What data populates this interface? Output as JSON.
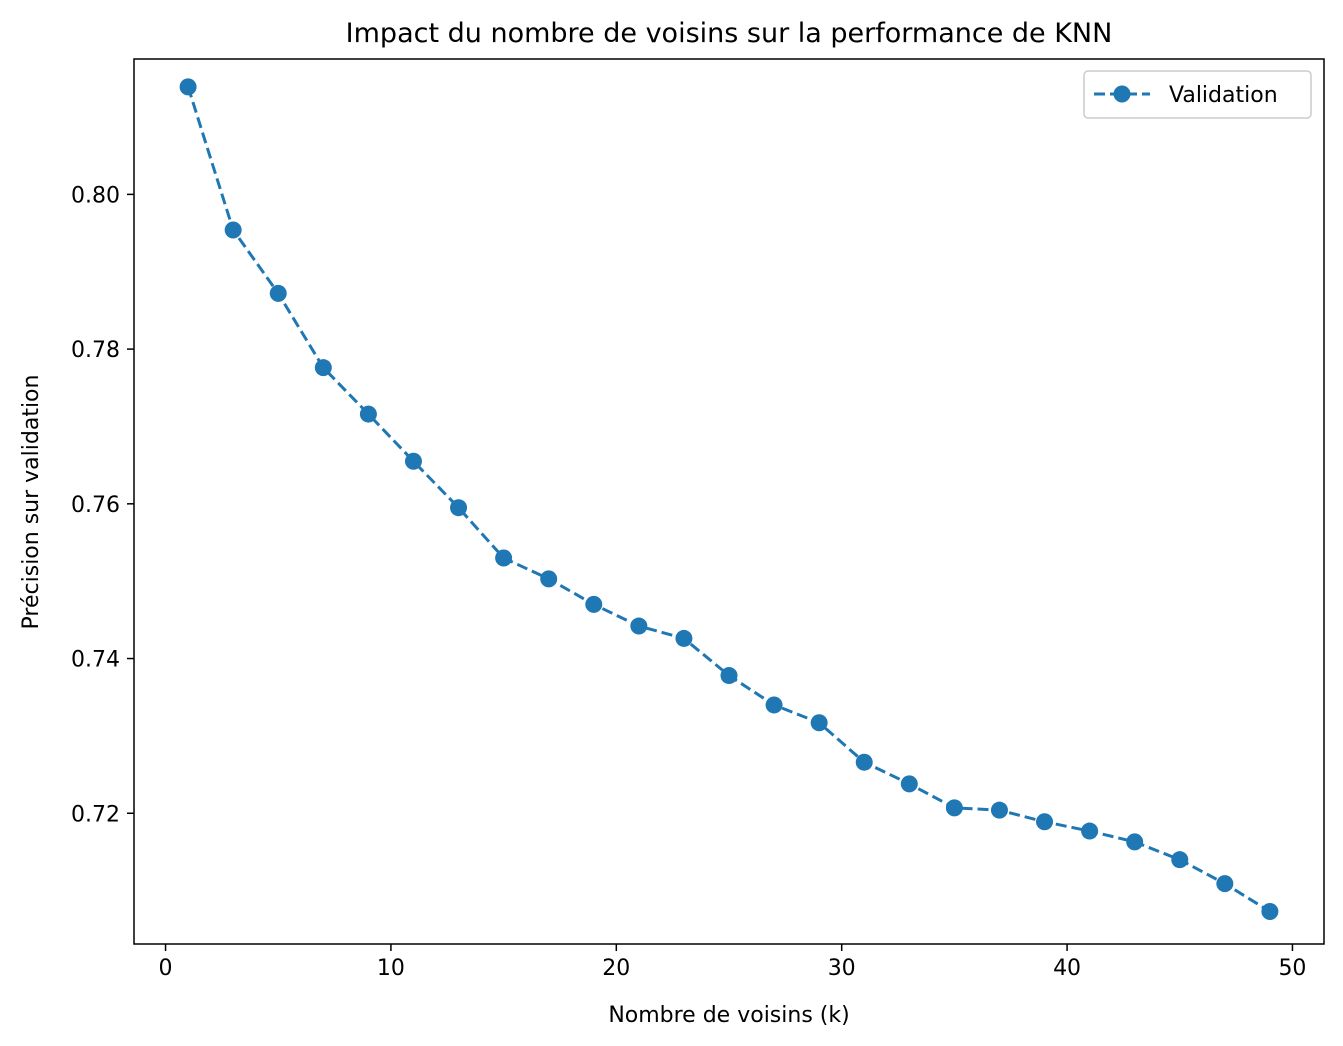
{
  "chart_data": {
    "type": "line",
    "title": "Impact du nombre de voisins sur la performance de KNN",
    "xlabel": "Nombre de voisins (k)",
    "ylabel": "Précision sur validation",
    "xlim": [
      -1.4,
      51.4
    ],
    "ylim": [
      0.7031,
      0.8175
    ],
    "xticks": [
      0,
      10,
      20,
      30,
      40,
      50
    ],
    "xtick_labels": [
      "0",
      "10",
      "20",
      "30",
      "40",
      "50"
    ],
    "yticks": [
      0.72,
      0.74,
      0.76,
      0.78,
      0.8
    ],
    "ytick_labels": [
      "0.72",
      "0.74",
      "0.76",
      "0.78",
      "0.80"
    ],
    "grid": false,
    "legend_position": "top-right",
    "series": [
      {
        "name": "Validation",
        "color": "#1f77b4",
        "line_style": "dashed",
        "marker": "circle",
        "x": [
          1,
          3,
          5,
          7,
          9,
          11,
          13,
          15,
          17,
          19,
          21,
          23,
          25,
          27,
          29,
          31,
          33,
          35,
          37,
          39,
          41,
          43,
          45,
          47,
          49
        ],
        "y": [
          0.8139,
          0.7954,
          0.7872,
          0.7776,
          0.7716,
          0.7655,
          0.7595,
          0.753,
          0.7503,
          0.747,
          0.7442,
          0.7426,
          0.7378,
          0.734,
          0.7317,
          0.7266,
          0.7238,
          0.7207,
          0.7204,
          0.7189,
          0.7177,
          0.7163,
          0.714,
          0.7109,
          0.7073
        ]
      }
    ]
  }
}
